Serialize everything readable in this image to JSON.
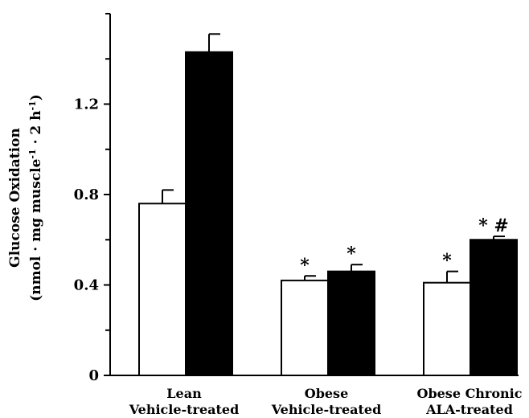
{
  "chart_data": {
    "type": "bar",
    "ylabel": {
      "line1": "Glucose Oxidation",
      "line2_main": "(nmol · mg muscle",
      "line2_sup1": "-1",
      "line2_mid": " · 2 h",
      "line2_sup2": "-1",
      "line2_end": ")"
    },
    "ylim": [
      0,
      1.6
    ],
    "yticks": [
      0,
      0.4,
      0.8,
      1.2
    ],
    "ytick_labels": [
      "0",
      "0.4",
      "0.8",
      "1.2"
    ],
    "ytick_minor": [
      0.2,
      0.6,
      1.0,
      1.4,
      1.6
    ],
    "categories": [
      {
        "line1": "Lean",
        "line2": "Vehicle-treated"
      },
      {
        "line1": "Obese",
        "line2": "Vehicle-treated"
      },
      {
        "line1": "Obese Chronic",
        "line2": "ALA-treated"
      }
    ],
    "series": [
      {
        "fill": "#ffffff",
        "values": [
          0.76,
          0.42,
          0.41
        ],
        "errors": [
          0.06,
          0.02,
          0.05
        ],
        "annotations": [
          "",
          "*",
          "*"
        ]
      },
      {
        "fill": "#000000",
        "values": [
          1.43,
          0.46,
          0.6
        ],
        "errors": [
          0.08,
          0.03,
          0.015
        ],
        "annotations": [
          "",
          "*",
          "* #"
        ]
      }
    ],
    "grid": false
  }
}
